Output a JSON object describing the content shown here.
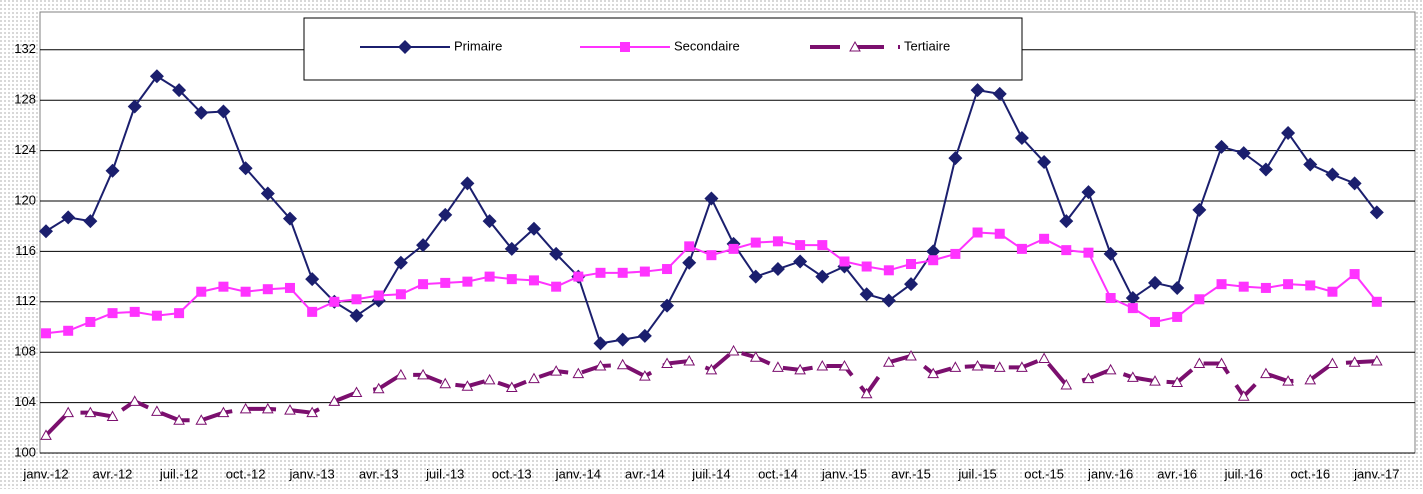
{
  "chart_data": {
    "type": "line",
    "categories": [
      "janv.-12",
      null,
      null,
      "avr.-12",
      null,
      null,
      "juil.-12",
      null,
      null,
      "oct.-12",
      null,
      null,
      "janv.-13",
      null,
      null,
      "avr.-13",
      null,
      null,
      "juil.-13",
      null,
      null,
      "oct.-13",
      null,
      null,
      "janv.-14",
      null,
      null,
      "avr.-14",
      null,
      null,
      "juil.-14",
      null,
      null,
      "oct.-14",
      null,
      null,
      "janv.-15",
      null,
      null,
      "avr.-15",
      null,
      null,
      "juil.-15",
      null,
      null,
      "oct.-15",
      null,
      null,
      "janv.-16",
      null,
      null,
      "avr.-16",
      null,
      null,
      "juil.-16",
      null,
      null,
      "oct.-16",
      null,
      null,
      "janv.-17"
    ],
    "series": [
      {
        "name": "Primaire",
        "color": "#1b1f6e",
        "marker": "diamond",
        "values": [
          117.6,
          118.7,
          118.4,
          122.4,
          127.5,
          129.9,
          128.8,
          127.0,
          127.1,
          122.6,
          120.6,
          118.6,
          113.8,
          112.0,
          110.9,
          112.1,
          115.1,
          116.5,
          118.9,
          121.4,
          118.4,
          116.2,
          117.8,
          115.8,
          114.0,
          108.7,
          109.0,
          109.3,
          111.7,
          115.1,
          120.2,
          116.6,
          114.0,
          114.6,
          115.2,
          114.0,
          114.8,
          112.6,
          112.1,
          113.4,
          116.0,
          123.4,
          128.8,
          128.5,
          125.0,
          123.1,
          118.4,
          120.7,
          115.8,
          112.3,
          113.5,
          113.1,
          119.3,
          124.3,
          123.8,
          122.5,
          125.4,
          122.9,
          122.1,
          121.4,
          119.1
        ]
      },
      {
        "name": "Secondaire",
        "color": "#ff33ff",
        "marker": "square",
        "values": [
          109.5,
          109.7,
          110.4,
          111.1,
          111.2,
          110.9,
          111.1,
          112.8,
          113.2,
          112.8,
          113.0,
          113.1,
          111.2,
          112.0,
          112.2,
          112.5,
          112.6,
          113.4,
          113.5,
          113.6,
          114.0,
          113.8,
          113.7,
          113.2,
          114.0,
          114.3,
          114.3,
          114.4,
          114.6,
          116.4,
          115.7,
          116.2,
          116.7,
          116.8,
          116.5,
          116.5,
          115.2,
          114.8,
          114.5,
          115.0,
          115.3,
          115.8,
          117.5,
          117.4,
          116.2,
          117.0,
          116.1,
          115.9,
          112.3,
          111.5,
          110.4,
          110.8,
          112.2,
          113.4,
          113.2,
          113.1,
          113.4,
          113.3,
          112.8,
          114.2,
          112.0
        ]
      },
      {
        "name": "Tertiaire",
        "color": "#7b0f6e",
        "marker": "triangle",
        "dashed": true,
        "values": [
          101.4,
          103.2,
          103.2,
          102.9,
          104.1,
          103.3,
          102.6,
          102.6,
          103.2,
          103.5,
          103.5,
          103.4,
          103.2,
          104.1,
          104.8,
          105.1,
          106.2,
          106.2,
          105.5,
          105.3,
          105.8,
          105.2,
          105.9,
          106.5,
          106.3,
          106.9,
          107.0,
          106.1,
          107.1,
          107.3,
          106.6,
          108.1,
          107.6,
          106.8,
          106.6,
          106.9,
          106.9,
          104.7,
          107.2,
          107.7,
          106.3,
          106.8,
          106.9,
          106.8,
          106.8,
          107.5,
          105.4,
          105.9,
          106.6,
          106.0,
          105.7,
          105.6,
          107.1,
          107.1,
          104.5,
          106.3,
          105.7,
          105.8,
          107.1,
          107.2,
          107.3
        ]
      }
    ],
    "ylim": [
      100,
      135
    ],
    "yticks": [
      100,
      104,
      108,
      112,
      116,
      120,
      124,
      128,
      132
    ],
    "grid": true,
    "legend": "top"
  }
}
